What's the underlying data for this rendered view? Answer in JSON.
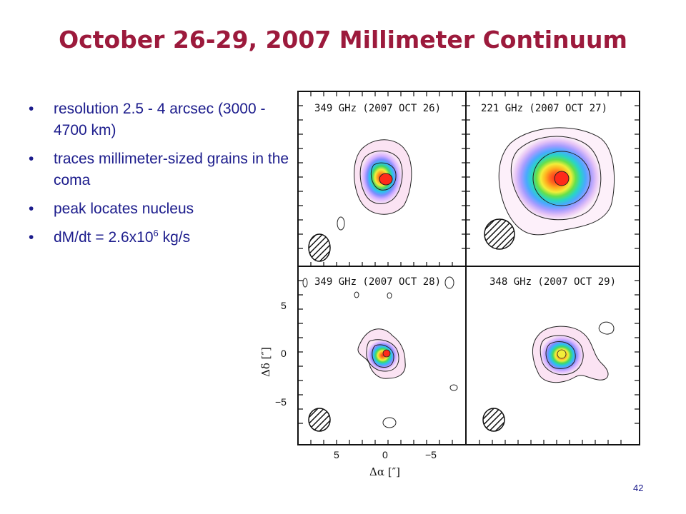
{
  "slide": {
    "title": "October 26-29, 2007 Millimeter Continuum",
    "page_number": "42"
  },
  "bullets": [
    {
      "text": "resolution 2.5 - 4 arcsec (3000 - 4700 km)"
    },
    {
      "text": "traces millimeter-sized grains in the coma"
    },
    {
      "text": "peak locates nucleus"
    },
    {
      "text_before": "dM/dt = 2.6x10",
      "superscript": "6",
      "text_after": " kg/s"
    }
  ],
  "figure": {
    "panels": [
      {
        "label": "349 GHz (2007 OCT 26)"
      },
      {
        "label": "221 GHz (2007 OCT 27)"
      },
      {
        "label": "349 GHz (2007 OCT 28)"
      },
      {
        "label": "348 GHz (2007 OCT 29)"
      }
    ],
    "x_axis": {
      "label": "Δα [″]",
      "ticks": [
        "5",
        "0",
        "−5"
      ]
    },
    "y_axis": {
      "label": "Δδ [″]",
      "ticks": [
        "5",
        "0",
        "−5"
      ]
    },
    "contour_colors": [
      "#f7d4ee",
      "#d6b2ff",
      "#7f8cff",
      "#28c3f0",
      "#46d860",
      "#f2ee3a",
      "#ff9d22",
      "#ff2a1a"
    ]
  }
}
